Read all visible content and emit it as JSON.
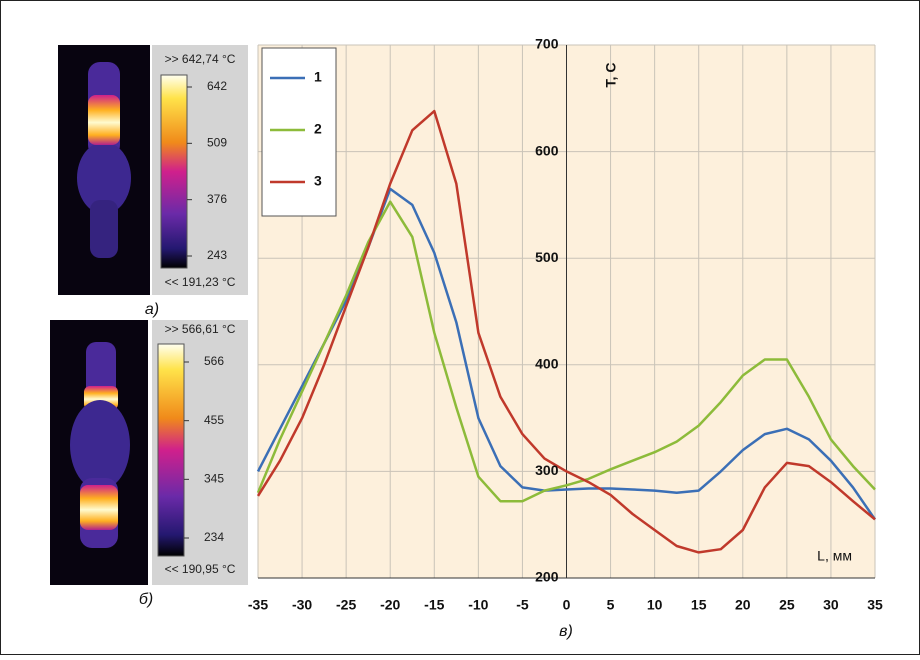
{
  "thermal_images": [
    {
      "caption": "а)",
      "max_label": ">> 642,74 °C",
      "min_label": "<< 191,23 °C",
      "ticks": [
        642,
        509,
        376,
        243
      ]
    },
    {
      "caption": "б)",
      "max_label": ">> 566,61 °C",
      "min_label": "<< 190,95 °C",
      "ticks": [
        566,
        455,
        345,
        234
      ]
    }
  ],
  "chart_data": {
    "type": "line",
    "caption": "в)",
    "y_label": "T, C",
    "x_label": "L, мм",
    "legend": "upper left",
    "grid": true,
    "x": [
      -35,
      -32.5,
      -30,
      -27.5,
      -25,
      -22.5,
      -20,
      -17.5,
      -15,
      -12.5,
      -10,
      -7.5,
      -5,
      -2.5,
      0,
      2.5,
      5,
      7.5,
      10,
      12.5,
      15,
      17.5,
      20,
      22.5,
      25,
      27.5,
      30,
      32.5,
      35
    ],
    "xlim": [
      -35,
      35
    ],
    "xticks": [
      -35,
      -30,
      -25,
      -20,
      -15,
      -10,
      -5,
      0,
      5,
      10,
      15,
      20,
      25,
      30,
      35
    ],
    "ylim": [
      200,
      700
    ],
    "yticks": [
      200,
      300,
      400,
      500,
      600,
      700
    ],
    "series": [
      {
        "name": "1",
        "color": "#3b6fb6",
        "values": [
          300,
          340,
          380,
          420,
          460,
          510,
          565,
          550,
          505,
          440,
          350,
          305,
          285,
          282,
          283,
          284,
          284,
          283,
          282,
          280,
          282,
          300,
          320,
          335,
          340,
          330,
          310,
          285,
          255
        ]
      },
      {
        "name": "2",
        "color": "#8dbb3a",
        "values": [
          280,
          330,
          375,
          420,
          465,
          515,
          553,
          520,
          430,
          360,
          295,
          272,
          272,
          282,
          287,
          293,
          302,
          310,
          318,
          328,
          343,
          365,
          390,
          405,
          405,
          370,
          330,
          305,
          283
        ]
      },
      {
        "name": "3",
        "color": "#c0392b",
        "values": [
          277,
          310,
          350,
          400,
          455,
          510,
          570,
          620,
          638,
          570,
          430,
          370,
          335,
          312,
          300,
          290,
          278,
          260,
          245,
          230,
          224,
          227,
          245,
          285,
          308,
          305,
          290,
          272,
          255
        ]
      }
    ]
  }
}
